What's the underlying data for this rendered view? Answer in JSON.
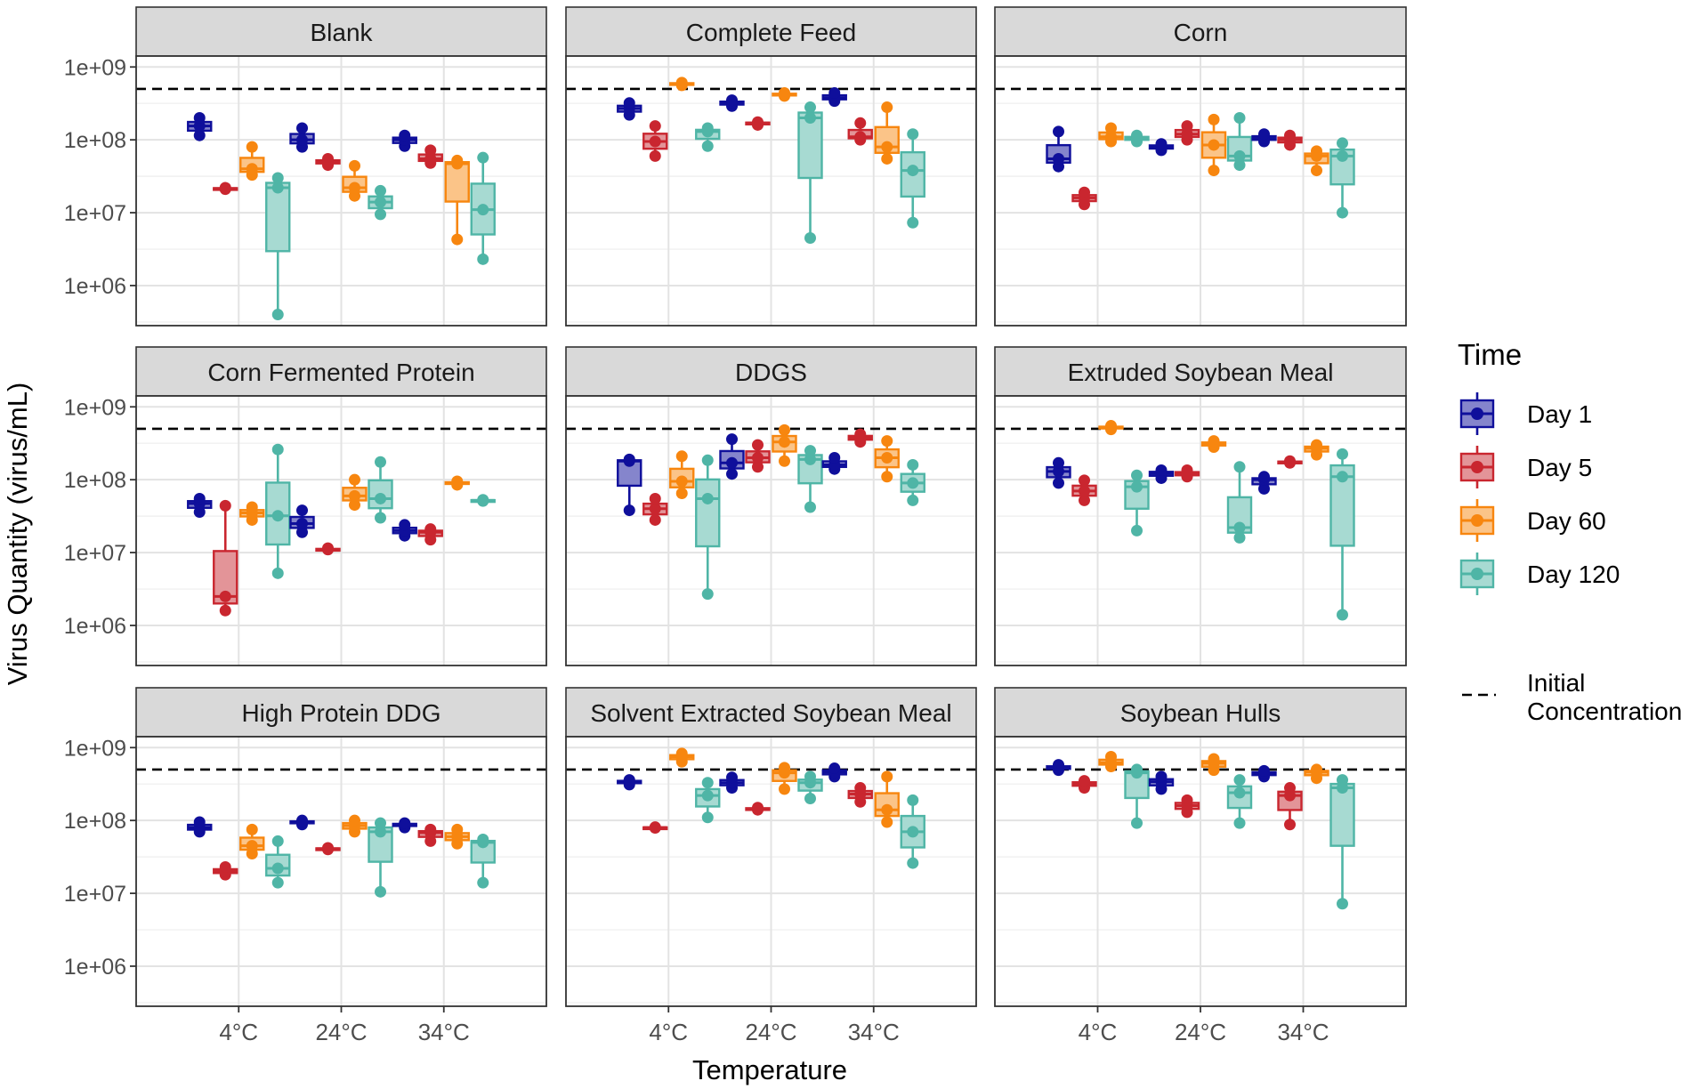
{
  "chart_data": {
    "type": "boxplot",
    "xlabel": "Temperature",
    "ylabel": "Virus Quantity (virus/mL)",
    "y_scale": "log10",
    "ylim": [
      5.45,
      9.15
    ],
    "y_ticks": [
      {
        "value": 1000000,
        "label": "1e+06"
      },
      {
        "value": 10000000,
        "label": "1e+07"
      },
      {
        "value": 100000000,
        "label": "1e+08"
      },
      {
        "value": 1000000000,
        "label": "1e+09"
      }
    ],
    "categories": [
      "4°C",
      "24°C",
      "34°C"
    ],
    "reference_line": {
      "value": 500000000,
      "label": "Initial Concentration",
      "style": "dashed"
    },
    "legend": {
      "title": "Time",
      "items": [
        {
          "name": "Day 1",
          "color": "#0f0f9b"
        },
        {
          "name": "Day 5",
          "color": "#c9262f"
        },
        {
          "name": "Day 60",
          "color": "#f7860f"
        },
        {
          "name": "Day 120",
          "color": "#4fb5a6"
        }
      ],
      "reference_label": "Initial Concentration"
    },
    "panels": [
      {
        "title": "Blank",
        "groups": [
          [
            [
              115000000,
              155000000,
              200000000
            ],
            [
              21000000,
              21500000,
              22000000
            ],
            [
              33000000,
              40000000,
              80000000
            ],
            [
              400000,
              22000000,
              30000000
            ]
          ],
          [
            [
              80000000,
              100000000,
              145000000
            ],
            [
              45000000,
              50000000,
              55000000
            ],
            [
              17000000,
              22000000,
              44000000
            ],
            [
              9500000,
              14000000,
              20000000
            ]
          ],
          [
            [
              82000000,
              100000000,
              115000000
            ],
            [
              48000000,
              55000000,
              72000000
            ],
            [
              4300000,
              47000000,
              52000000
            ],
            [
              2300000,
              11000000,
              57000000
            ]
          ]
        ]
      },
      {
        "title": "Complete Feed",
        "groups": [
          [
            [
              220000000,
              270000000,
              320000000
            ],
            [
              60000000,
              95000000,
              155000000
            ],
            [
              560000000,
              590000000,
              610000000
            ],
            [
              82000000,
              130000000,
              145000000
            ]
          ],
          [
            [
              290000000,
              320000000,
              350000000
            ],
            [
              160000000,
              170000000,
              175000000
            ],
            [
              400000000,
              420000000,
              440000000
            ],
            [
              4500000,
              200000000,
              280000000
            ]
          ],
          [
            [
              340000000,
              380000000,
              440000000
            ],
            [
              100000000,
              110000000,
              170000000
            ],
            [
              55000000,
              80000000,
              280000000
            ],
            [
              7300000,
              38000000,
              120000000
            ]
          ]
        ]
      },
      {
        "title": "Corn",
        "groups": [
          [
            [
              43000000,
              55000000,
              130000000
            ],
            [
              13000000,
              16000000,
              19000000
            ],
            [
              95000000,
              110000000,
              145000000
            ],
            [
              95000000,
              105000000,
              115000000
            ]
          ],
          [
            [
              72000000,
              80000000,
              88000000
            ],
            [
              100000000,
              120000000,
              155000000
            ],
            [
              38000000,
              85000000,
              190000000
            ],
            [
              45000000,
              60000000,
              200000000
            ]
          ],
          [
            [
              95000000,
              105000000,
              120000000
            ],
            [
              85000000,
              100000000,
              115000000
            ],
            [
              38000000,
              60000000,
              70000000
            ],
            [
              10000000,
              60000000,
              90000000
            ]
          ]
        ]
      },
      {
        "title": "Corn Fermented Protein",
        "groups": [
          [
            [
              36000000,
              47000000,
              55000000
            ],
            [
              1600000,
              2500000,
              44000000
            ],
            [
              28000000,
              35000000,
              42000000
            ],
            [
              5200000,
              32000000,
              260000000
            ]
          ],
          [
            [
              19000000,
              25000000,
              38000000
            ],
            [
              11000000,
              11000000,
              11500000
            ],
            [
              45000000,
              60000000,
              100000000
            ],
            [
              30000000,
              55000000,
              175000000
            ]
          ],
          [
            [
              17000000,
              20000000,
              24000000
            ],
            [
              15000000,
              19000000,
              21000000
            ],
            [
              85000000,
              90000000,
              95000000
            ],
            [
              51000000,
              52000000,
              53000000
            ]
          ]
        ]
      },
      {
        "title": "DDGS",
        "groups": [
          [
            [
              38000000,
              180000000,
              190000000
            ],
            [
              28000000,
              40000000,
              55000000
            ],
            [
              65000000,
              95000000,
              210000000
            ],
            [
              2700000,
              55000000,
              185000000
            ]
          ],
          [
            [
              120000000,
              170000000,
              360000000
            ],
            [
              150000000,
              200000000,
              300000000
            ],
            [
              180000000,
              330000000,
              480000000
            ],
            [
              42000000,
              190000000,
              250000000
            ]
          ],
          [
            [
              140000000,
              160000000,
              200000000
            ],
            [
              330000000,
              380000000,
              420000000
            ],
            [
              110000000,
              200000000,
              340000000
            ],
            [
              52000000,
              90000000,
              160000000
            ]
          ]
        ]
      },
      {
        "title": "Extruded Soybean Meal",
        "groups": [
          [
            [
              90000000,
              130000000,
              170000000
            ],
            [
              52000000,
              70000000,
              98000000
            ],
            [
              490000000,
              520000000,
              550000000
            ],
            [
              20000000,
              80000000,
              115000000
            ]
          ],
          [
            [
              105000000,
              122000000,
              135000000
            ],
            [
              110000000,
              120000000,
              135000000
            ],
            [
              280000000,
              310000000,
              340000000
            ],
            [
              16000000,
              22000000,
              150000000
            ]
          ],
          [
            [
              75000000,
              100000000,
              110000000
            ],
            [
              170000000,
              175000000,
              180000000
            ],
            [
              220000000,
              270000000,
              300000000
            ],
            [
              1400000,
              110000000,
              225000000
            ]
          ]
        ]
      },
      {
        "title": "High Protein DDG",
        "groups": [
          [
            [
              70000000,
              80000000,
              95000000
            ],
            [
              18000000,
              20000000,
              23000000
            ],
            [
              35000000,
              45000000,
              75000000
            ],
            [
              14000000,
              22000000,
              52000000
            ]
          ],
          [
            [
              88000000,
              95000000,
              100000000
            ],
            [
              40000000,
              41000000,
              42000000
            ],
            [
              70000000,
              85000000,
              100000000
            ],
            [
              10500000,
              70000000,
              92000000
            ]
          ],
          [
            [
              80000000,
              88000000,
              92000000
            ],
            [
              52000000,
              68000000,
              75000000
            ],
            [
              48000000,
              60000000,
              75000000
            ],
            [
              14000000,
              50000000,
              55000000
            ]
          ]
        ]
      },
      {
        "title": "Solvent Extracted Soybean Meal",
        "groups": [
          [
            [
              310000000,
              340000000,
              360000000
            ],
            [
              79000000,
              80000000,
              81000000
            ],
            [
              640000000,
              750000000,
              830000000
            ],
            [
              110000000,
              220000000,
              330000000
            ]
          ],
          [
            [
              280000000,
              330000000,
              390000000
            ],
            [
              140000000,
              145000000,
              150000000
            ],
            [
              270000000,
              450000000,
              530000000
            ],
            [
              200000000,
              330000000,
              400000000
            ]
          ],
          [
            [
              400000000,
              460000000,
              520000000
            ],
            [
              180000000,
              230000000,
              280000000
            ],
            [
              95000000,
              140000000,
              400000000
            ],
            [
              26000000,
              70000000,
              190000000
            ]
          ]
        ]
      },
      {
        "title": "Soybean Hulls",
        "groups": [
          [
            [
              490000000,
              530000000,
              580000000
            ],
            [
              280000000,
              320000000,
              350000000
            ],
            [
              550000000,
              620000000,
              750000000
            ],
            [
              92000000,
              450000000,
              500000000
            ]
          ],
          [
            [
              270000000,
              340000000,
              400000000
            ],
            [
              130000000,
              160000000,
              190000000
            ],
            [
              490000000,
              610000000,
              700000000
            ],
            [
              92000000,
              240000000,
              360000000
            ]
          ],
          [
            [
              400000000,
              440000000,
              480000000
            ],
            [
              88000000,
              220000000,
              280000000
            ],
            [
              380000000,
              460000000,
              500000000
            ],
            [
              7200000,
              280000000,
              360000000
            ]
          ]
        ]
      }
    ]
  }
}
